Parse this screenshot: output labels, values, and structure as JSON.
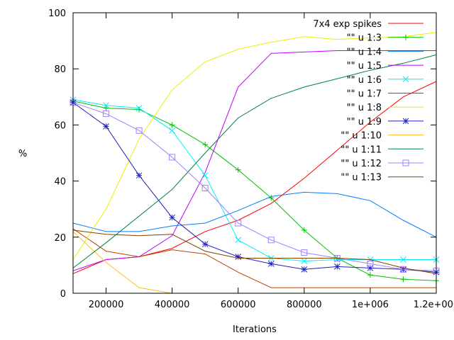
{
  "chart_data": {
    "type": "line",
    "xlabel": "Iterations",
    "ylabel": "%",
    "xlim": [
      100000,
      1200000
    ],
    "ylim": [
      0,
      100
    ],
    "x_ticks": [
      {
        "value": 200000,
        "label": "200000"
      },
      {
        "value": 400000,
        "label": "400000"
      },
      {
        "value": 600000,
        "label": "600000"
      },
      {
        "value": 800000,
        "label": "800000"
      },
      {
        "value": 1000000,
        "label": "1e+006"
      },
      {
        "value": 1200000,
        "label": "1.2e+006"
      }
    ],
    "y_ticks": [
      {
        "value": 0,
        "label": "0"
      },
      {
        "value": 20,
        "label": "20"
      },
      {
        "value": 40,
        "label": "40"
      },
      {
        "value": 60,
        "label": "60"
      },
      {
        "value": 80,
        "label": "80"
      },
      {
        "value": 100,
        "label": "100"
      }
    ],
    "grid": false,
    "legend_position": "top-right",
    "x": [
      100000,
      200000,
      300000,
      400000,
      500000,
      600000,
      700000,
      800000,
      900000,
      1000000,
      1100000,
      1200000
    ],
    "series": [
      {
        "name": "7x4 exp spikes",
        "color": "#ff0000",
        "marker": "none",
        "values": [
          7,
          12,
          13,
          16,
          22,
          26,
          32,
          41,
          51,
          61,
          70,
          75.5
        ]
      },
      {
        "name": "\"\" u 1:3",
        "color": "#00c000",
        "marker": "plus",
        "values": [
          68.5,
          66,
          65.5,
          60,
          53,
          44,
          34,
          22.5,
          12.5,
          6.5,
          5,
          4.5
        ]
      },
      {
        "name": "\"\" u 1:4",
        "color": "#0080ff",
        "marker": "none",
        "values": [
          25,
          22,
          22,
          24,
          25,
          29.5,
          34.5,
          36,
          35.5,
          33,
          26,
          20
        ]
      },
      {
        "name": "\"\" u 1:5",
        "color": "#c000ff",
        "marker": "none",
        "values": [
          8,
          12,
          13,
          20.5,
          43,
          73.5,
          85.5,
          86,
          86.5,
          86.5,
          86.5,
          86.5
        ]
      },
      {
        "name": "\"\" u 1:6",
        "color": "#00eeee",
        "marker": "x",
        "values": [
          69,
          67,
          66,
          58,
          42,
          19,
          12.5,
          11.5,
          12,
          12,
          12,
          12
        ]
      },
      {
        "name": "\"\" u 1:7",
        "color": "#c04000",
        "marker": "none",
        "values": [
          23,
          15,
          13,
          15.5,
          14,
          7.5,
          2,
          2,
          2,
          2,
          2,
          2
        ]
      },
      {
        "name": "\"\" u 1:8",
        "color": "#eeee00",
        "marker": "none",
        "values": [
          12,
          30,
          55,
          72.5,
          82.5,
          87,
          89.5,
          91.5,
          90.5,
          91,
          91.5,
          93
        ]
      },
      {
        "name": "\"\" u 1:9",
        "color": "#2020c0",
        "marker": "star",
        "values": [
          68,
          59.5,
          42,
          27,
          17.5,
          13,
          10.5,
          8.5,
          9.5,
          9,
          8.5,
          7.5
        ]
      },
      {
        "name": "\"\" u 1:10",
        "color": "#ffc020",
        "marker": "none",
        "values": [
          22,
          11,
          2,
          0,
          0,
          0,
          0,
          0,
          0,
          0,
          0,
          0
        ]
      },
      {
        "name": "\"\" u 1:11",
        "color": "#008040",
        "marker": "none",
        "values": [
          9,
          18,
          27.5,
          37,
          50,
          62.5,
          69.5,
          73.5,
          76.5,
          79.5,
          82,
          85
        ]
      },
      {
        "name": "\"\" u 1:12",
        "color": "#a080ff",
        "marker": "box",
        "values": [
          68,
          64,
          58,
          48.5,
          37.5,
          25,
          19,
          14.5,
          12.5,
          10.5,
          8.5,
          8
        ]
      },
      {
        "name": "\"\" u 1:13",
        "color": "#804000",
        "marker": "none",
        "values": [
          22.5,
          21,
          20.5,
          21,
          15,
          12.5,
          12.5,
          12.5,
          12.5,
          12,
          9,
          7
        ]
      }
    ]
  }
}
